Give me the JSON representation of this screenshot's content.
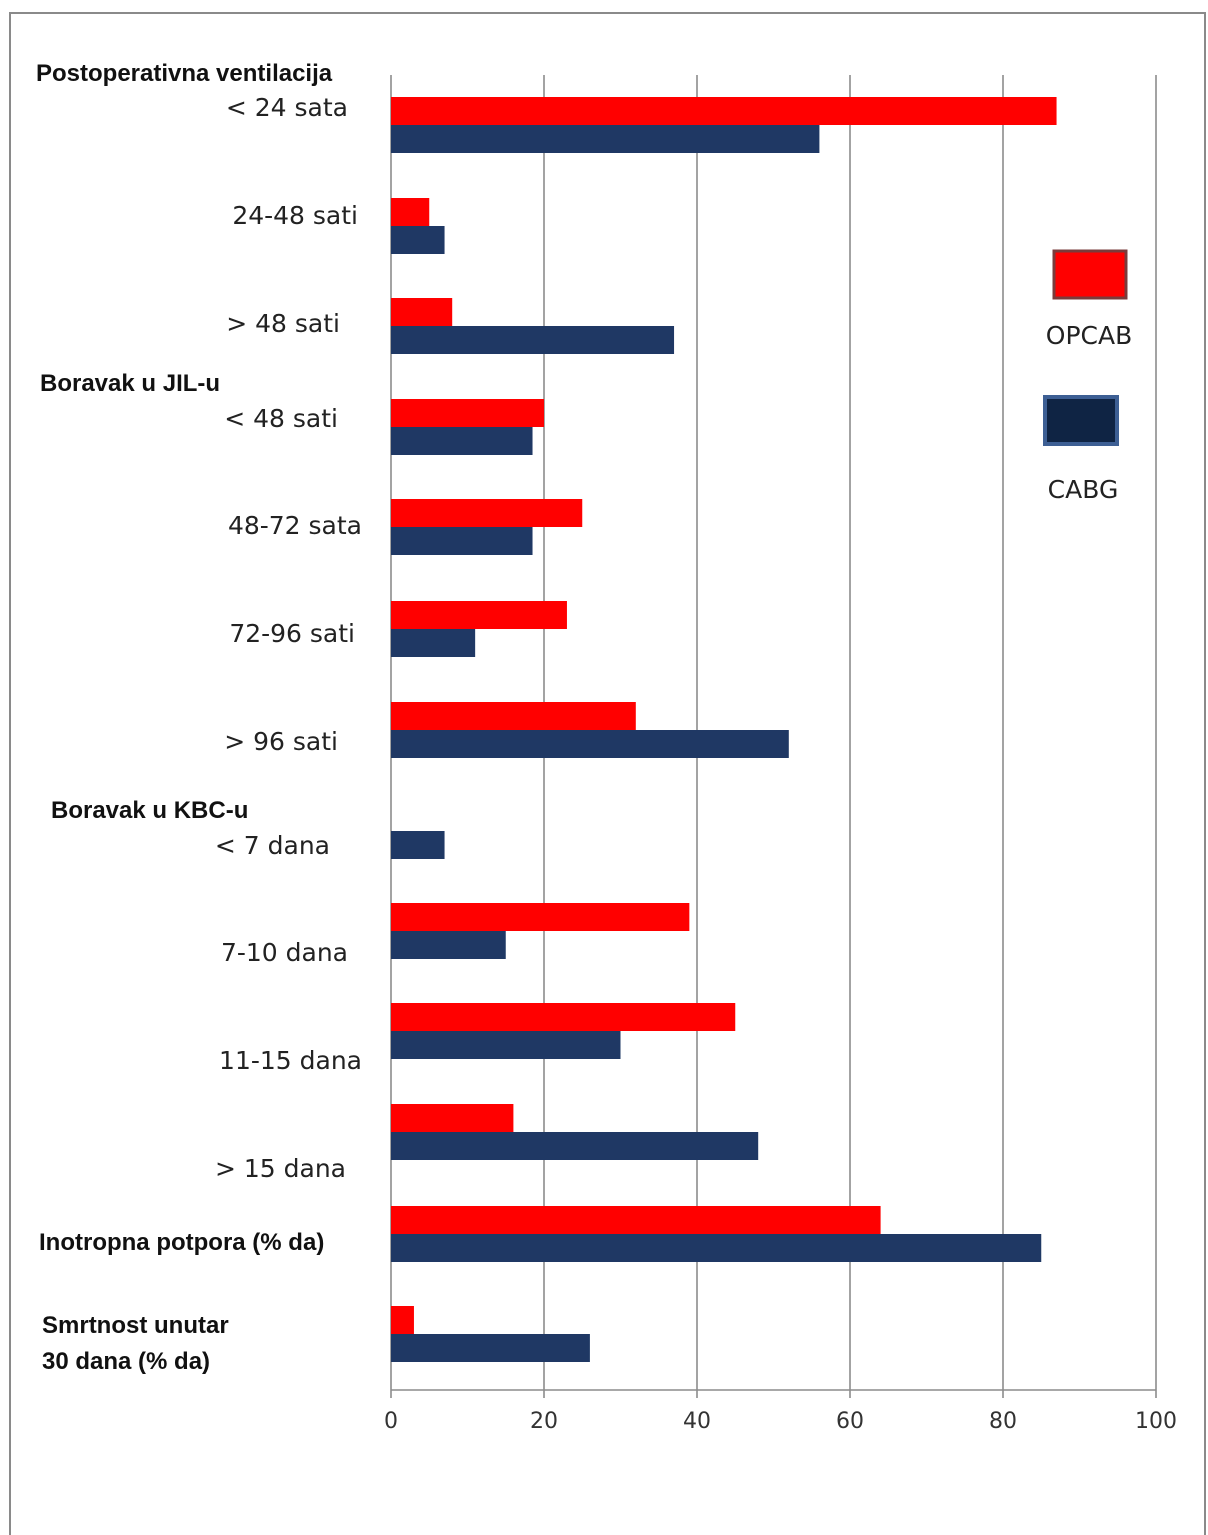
{
  "chart_data": {
    "type": "bar",
    "orientation": "horizontal",
    "xlim": [
      0,
      100
    ],
    "x_ticks": [
      "0",
      "20",
      "40",
      "60",
      "80",
      "100"
    ],
    "grid": "vertical",
    "legend": "right",
    "groups": [
      {
        "title": [
          "Postoperativna ventilacija"
        ],
        "rows": [
          {
            "label": "< 24 sata",
            "opcab": 87,
            "cabg": 56
          },
          {
            "label": "24-48 sati",
            "opcab": 5,
            "cabg": 7
          },
          {
            "label": "> 48 sati",
            "opcab": 8,
            "cabg": 37
          }
        ]
      },
      {
        "title": [
          "Boravak u JIL-u"
        ],
        "rows": [
          {
            "label": "< 48 sati",
            "opcab": 20,
            "cabg": 18.5
          },
          {
            "label": "48-72 sata",
            "opcab": 25,
            "cabg": 18.5
          },
          {
            "label": "72-96 sati",
            "opcab": 23,
            "cabg": 11
          },
          {
            "label": "> 96 sati",
            "opcab": 32,
            "cabg": 52
          }
        ]
      },
      {
        "title": [
          "Boravak u KBC-u"
        ],
        "rows": [
          {
            "label": "< 7 dana",
            "opcab": 0,
            "cabg": 7
          },
          {
            "label": "7-10 dana",
            "opcab": 39,
            "cabg": 15
          },
          {
            "label": "11-15 dana",
            "opcab": 45,
            "cabg": 30
          },
          {
            "label": "> 15 dana",
            "opcab": 16,
            "cabg": 48
          }
        ]
      },
      {
        "title": [
          "Inotropna potpora (% da)"
        ],
        "rows": [
          {
            "label": "",
            "opcab": 64,
            "cabg": 85
          }
        ]
      },
      {
        "title": [
          "Smrtnost unutar",
          "30 dana (% da)"
        ],
        "rows": [
          {
            "label": "",
            "opcab": 3,
            "cabg": 26
          }
        ]
      }
    ],
    "series": [
      {
        "key": "opcab",
        "name": "OPCAB",
        "color": "#ff0000",
        "border": "#7a3b3b"
      },
      {
        "key": "cabg",
        "name": "CABG",
        "color": "#1f3864",
        "border": "#3d5f94"
      }
    ]
  }
}
